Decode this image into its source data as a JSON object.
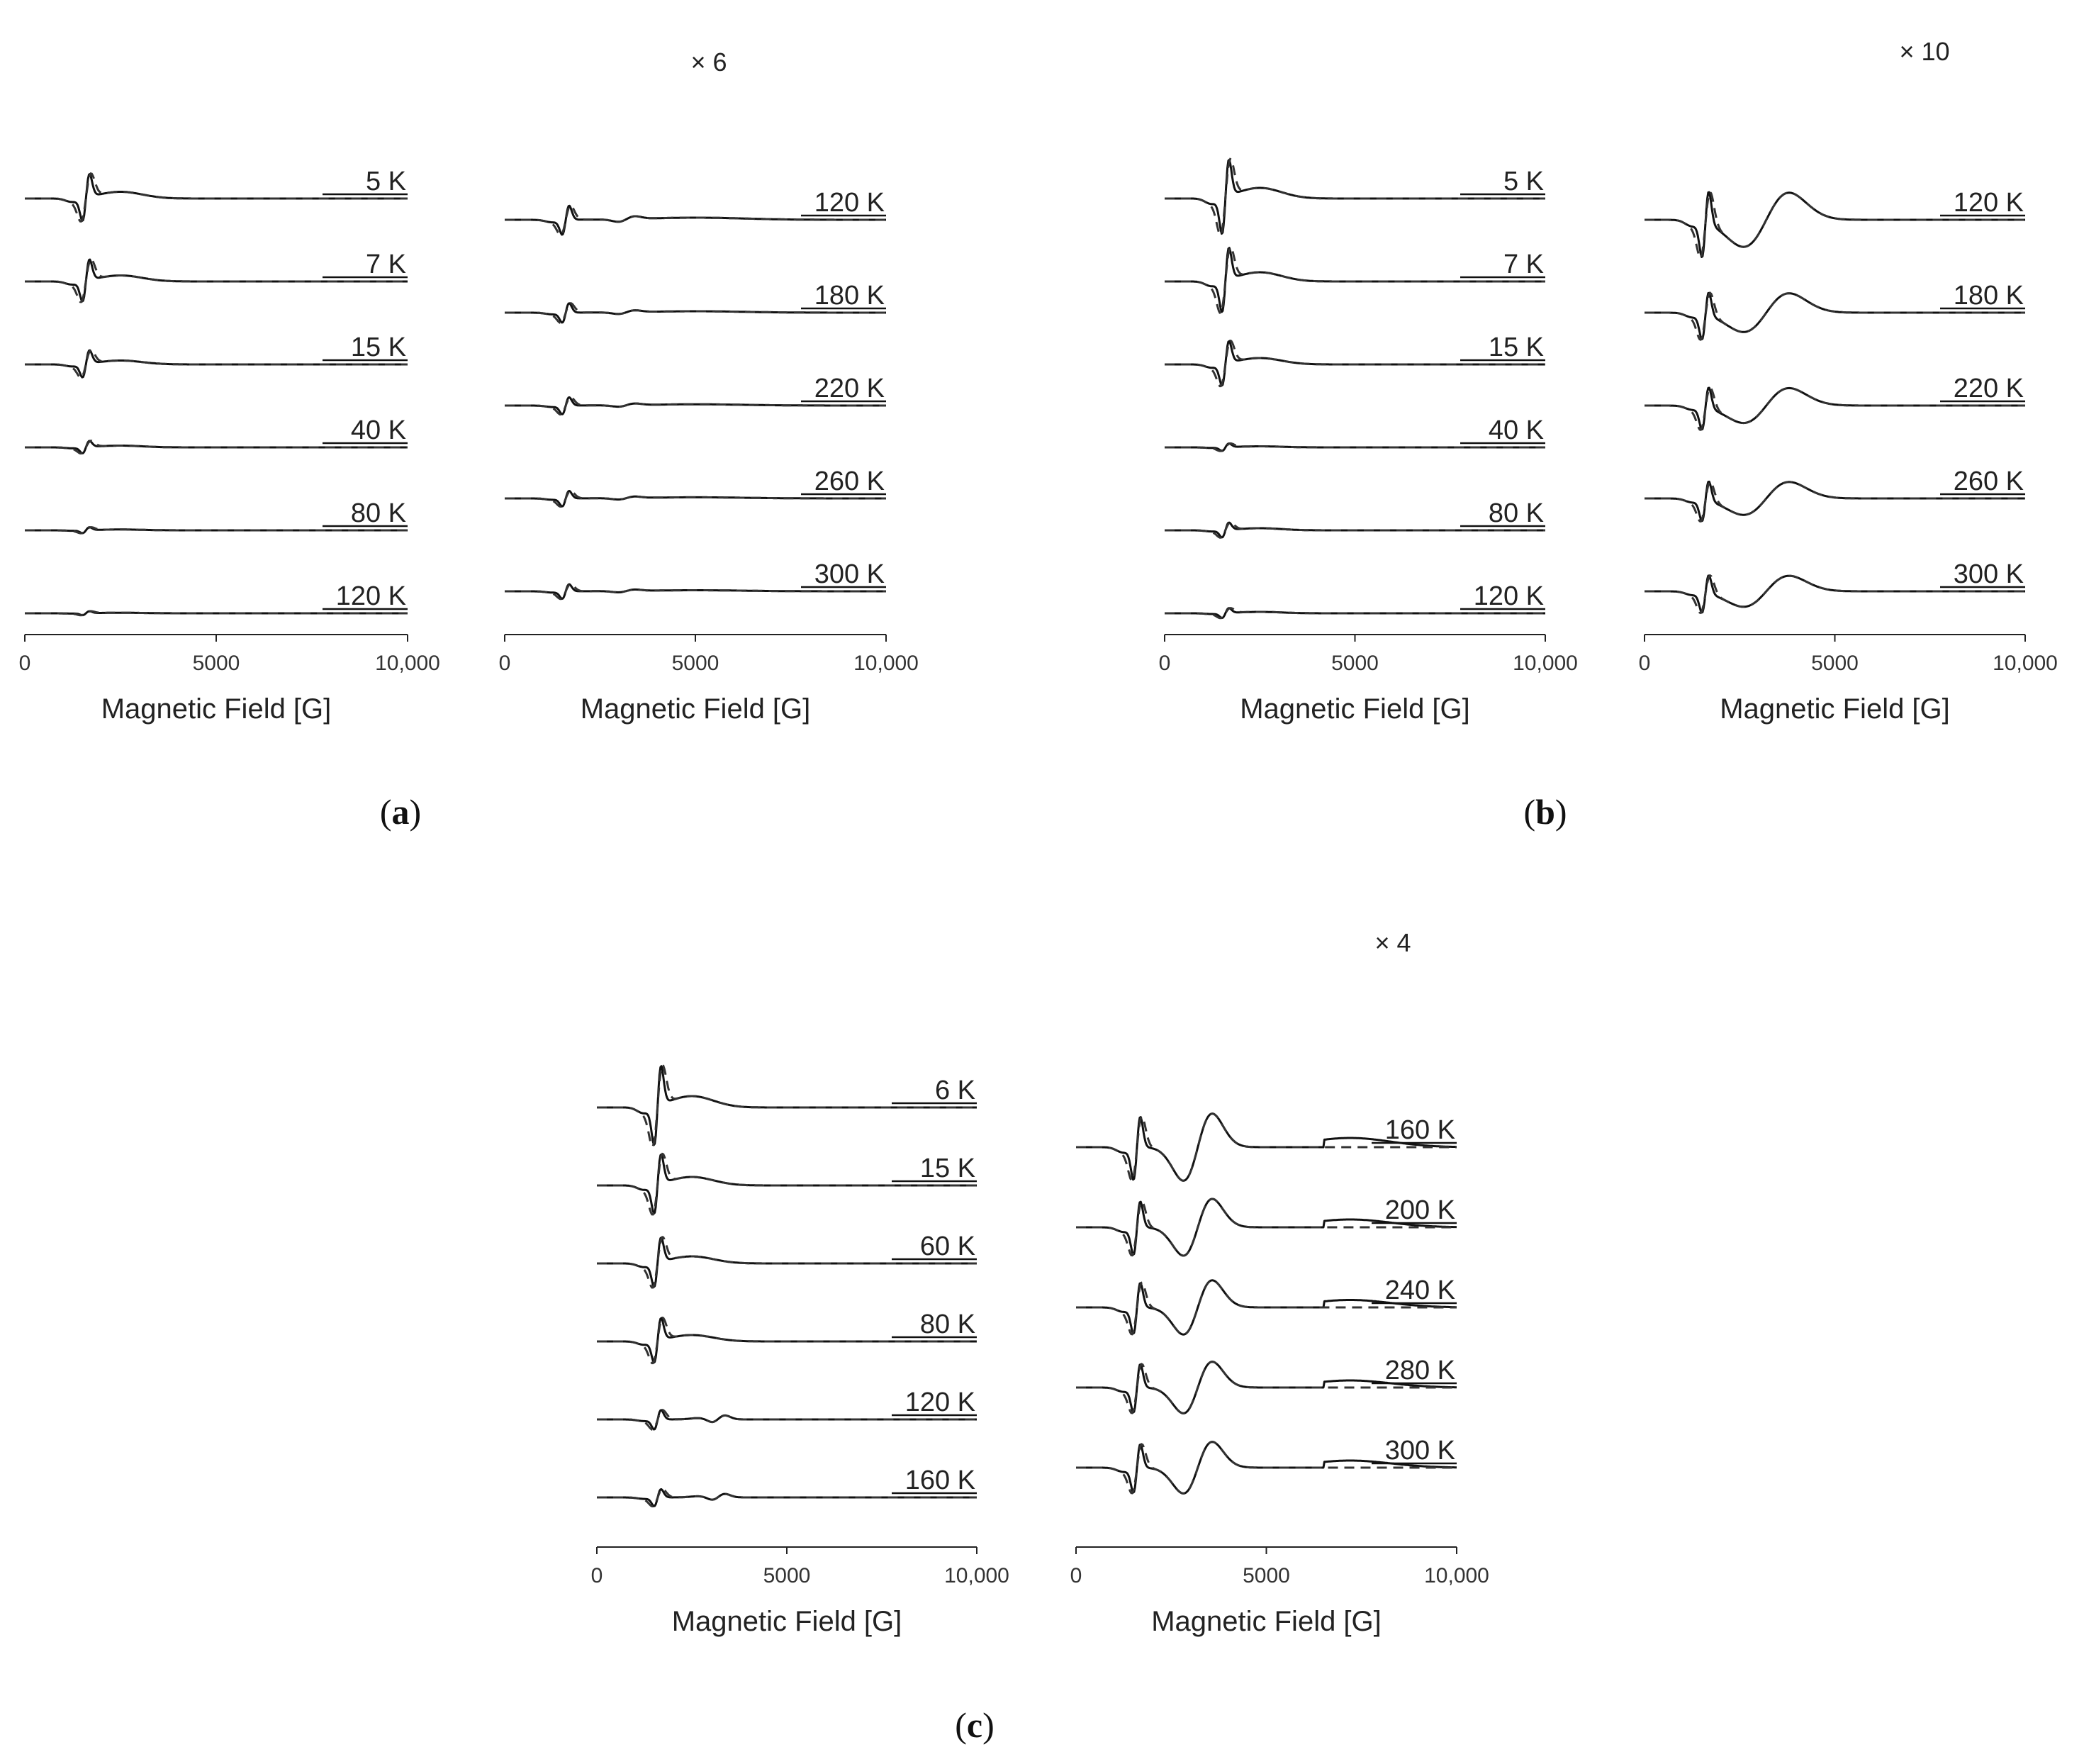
{
  "figure": {
    "panel_labels": [
      "a",
      "b",
      "c"
    ]
  },
  "chart_data": [
    {
      "id": "a-left",
      "panel": "a",
      "type": "line",
      "xlabel": "Magnetic Field [G]",
      "xlim": [
        0,
        10000
      ],
      "xticks": [
        "0",
        "5000",
        "10,000"
      ],
      "scale_factor": "",
      "series": [
        {
          "name": "5 K",
          "amp": 0.95,
          "shape": "low"
        },
        {
          "name": "7 K",
          "amp": 0.85,
          "shape": "low"
        },
        {
          "name": "15 K",
          "amp": 0.55,
          "shape": "low"
        },
        {
          "name": "40 K",
          "amp": 0.25,
          "shape": "low"
        },
        {
          "name": "80 K",
          "amp": 0.12,
          "shape": "low"
        },
        {
          "name": "120 K",
          "amp": 0.08,
          "shape": "low"
        }
      ]
    },
    {
      "id": "a-right",
      "panel": "a",
      "type": "line",
      "xlabel": "Magnetic Field [G]",
      "xlim": [
        0,
        10000
      ],
      "xticks": [
        "0",
        "5000",
        "10,000"
      ],
      "scale_factor": "× 6",
      "series": [
        {
          "name": "120 K",
          "amp": 0.6,
          "shape": "high"
        },
        {
          "name": "180 K",
          "amp": 0.4,
          "shape": "high"
        },
        {
          "name": "220 K",
          "amp": 0.35,
          "shape": "high"
        },
        {
          "name": "260 K",
          "amp": 0.32,
          "shape": "high"
        },
        {
          "name": "300 K",
          "amp": 0.3,
          "shape": "high"
        }
      ]
    },
    {
      "id": "b-left",
      "panel": "b",
      "type": "line",
      "xlabel": "Magnetic Field [G]",
      "xlim": [
        0,
        10000
      ],
      "xticks": [
        "0",
        "5000",
        "10,000"
      ],
      "scale_factor": "",
      "series": [
        {
          "name": "5 K",
          "amp": 1.5,
          "shape": "low"
        },
        {
          "name": "7 K",
          "amp": 1.3,
          "shape": "low"
        },
        {
          "name": "15 K",
          "amp": 0.9,
          "shape": "low"
        },
        {
          "name": "40 K",
          "amp": 0.15,
          "shape": "low"
        },
        {
          "name": "80 K",
          "amp": 0.3,
          "shape": "low"
        },
        {
          "name": "120 K",
          "amp": 0.2,
          "shape": "low"
        }
      ]
    },
    {
      "id": "b-right",
      "panel": "b",
      "type": "line",
      "xlabel": "Magnetic Field [G]",
      "xlim": [
        0,
        10000
      ],
      "xticks": [
        "0",
        "5000",
        "10,000"
      ],
      "scale_factor": "× 10",
      "series": [
        {
          "name": "120 K",
          "amp": 1.4,
          "shape": "broad"
        },
        {
          "name": "180 K",
          "amp": 1.0,
          "shape": "broad"
        },
        {
          "name": "220 K",
          "amp": 0.9,
          "shape": "broad"
        },
        {
          "name": "260 K",
          "amp": 0.85,
          "shape": "broad"
        },
        {
          "name": "300 K",
          "amp": 0.8,
          "shape": "broad"
        }
      ]
    },
    {
      "id": "c-left",
      "panel": "c",
      "type": "line",
      "xlabel": "Magnetic Field [G]",
      "xlim": [
        0,
        10000
      ],
      "xticks": [
        "0",
        "5000",
        "10,000"
      ],
      "scale_factor": "",
      "series": [
        {
          "name": "6 K",
          "amp": 1.6,
          "shape": "low"
        },
        {
          "name": "15 K",
          "amp": 1.2,
          "shape": "low"
        },
        {
          "name": "60 K",
          "amp": 1.0,
          "shape": "low"
        },
        {
          "name": "80 K",
          "amp": 0.9,
          "shape": "low"
        },
        {
          "name": "120 K",
          "amp": 0.4,
          "shape": "mid"
        },
        {
          "name": "160 K",
          "amp": 0.35,
          "shape": "mid"
        }
      ]
    },
    {
      "id": "c-right",
      "panel": "c",
      "type": "line",
      "xlabel": "Magnetic Field [G]",
      "xlim": [
        0,
        10000
      ],
      "xticks": [
        "0",
        "5000",
        "10,000"
      ],
      "scale_factor": "× 4",
      "series": [
        {
          "name": "160 K",
          "amp": 1.3,
          "shape": "broad2"
        },
        {
          "name": "200 K",
          "amp": 1.1,
          "shape": "broad2"
        },
        {
          "name": "240 K",
          "amp": 1.05,
          "shape": "broad2"
        },
        {
          "name": "280 K",
          "amp": 1.0,
          "shape": "broad2"
        },
        {
          "name": "300 K",
          "amp": 1.0,
          "shape": "broad2"
        }
      ]
    }
  ]
}
